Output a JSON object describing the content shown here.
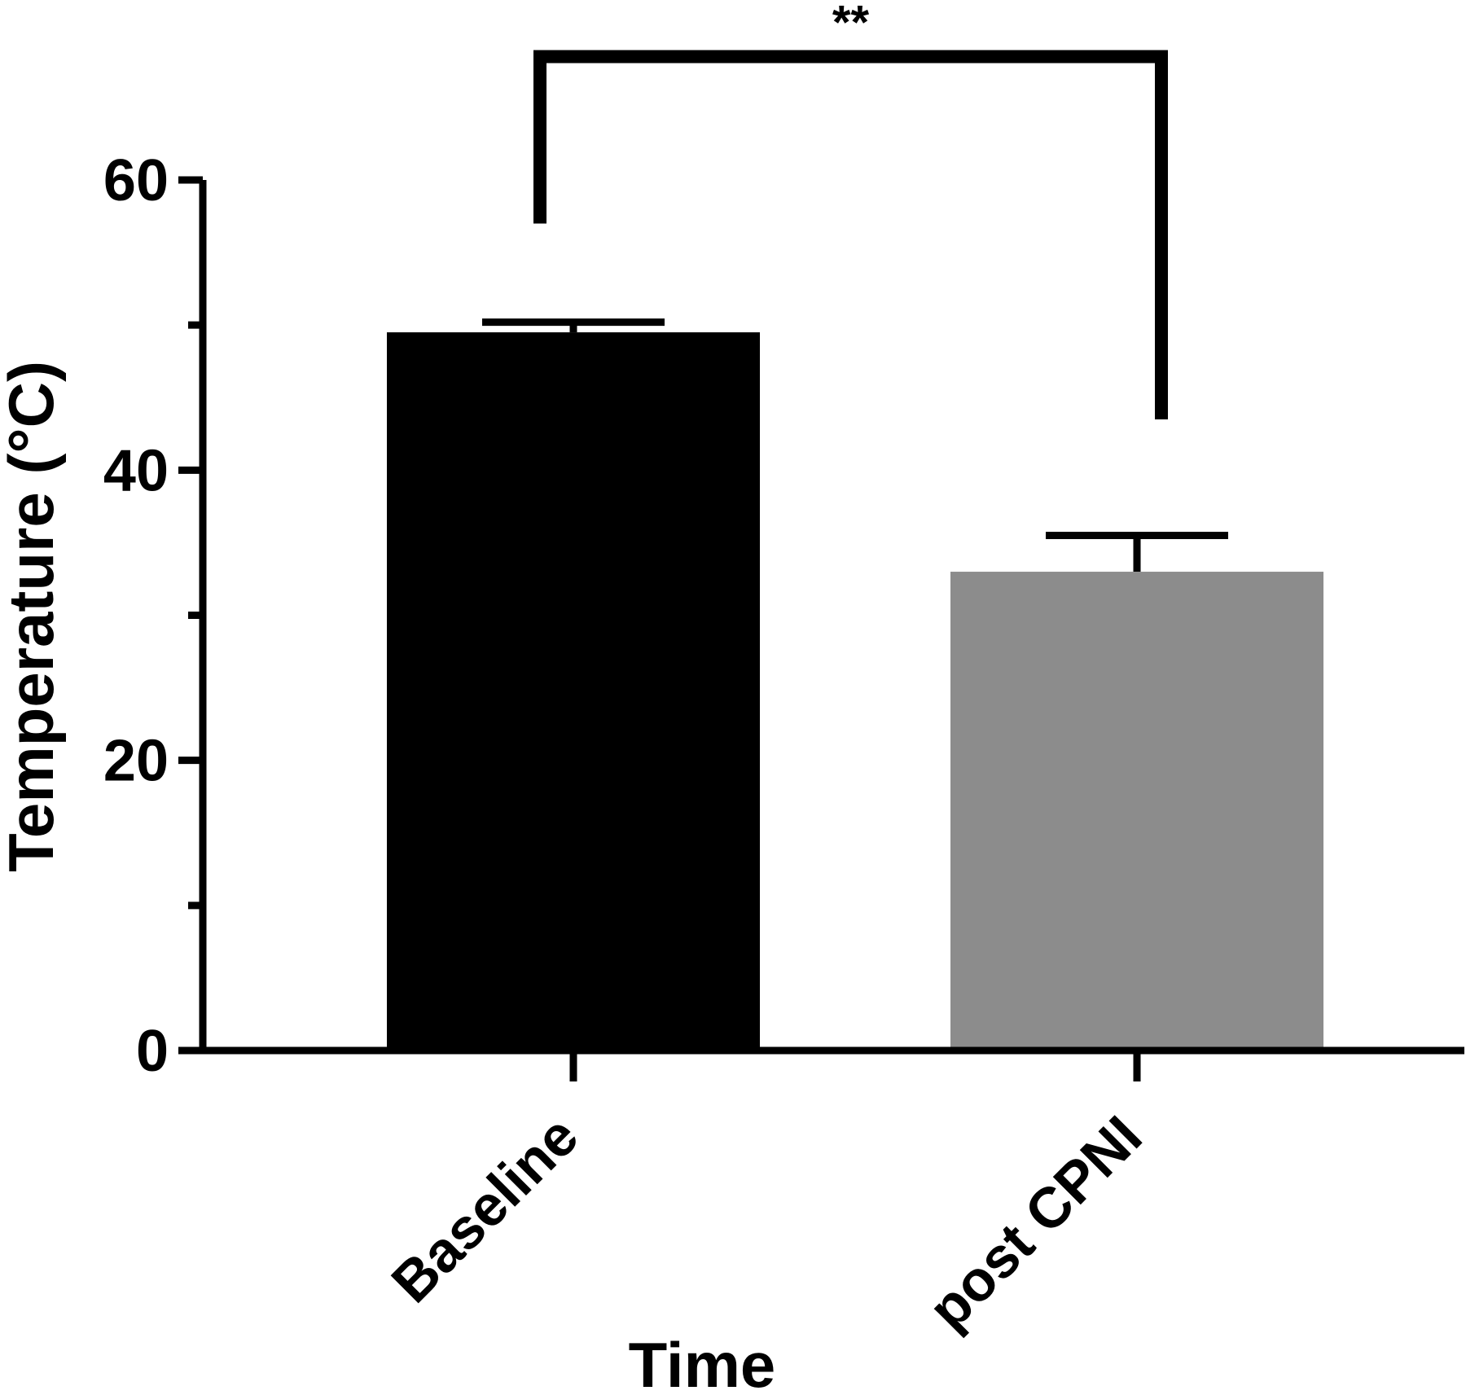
{
  "chart_data": {
    "type": "bar",
    "title": "",
    "xlabel": "Time",
    "ylabel": "Temperature (°C)",
    "categories": [
      "Baseline",
      "post CPNI"
    ],
    "values": [
      49.5,
      33.0
    ],
    "error_upper": [
      50.2,
      35.5
    ],
    "bar_colors": [
      "#000000",
      "#8c8c8c"
    ],
    "ylim": [
      0,
      60
    ],
    "yticks": [
      0,
      20,
      40,
      60
    ],
    "yticks_minor": [
      10,
      30,
      50
    ],
    "legend": "none",
    "grid": false,
    "significance": {
      "label": "**",
      "between": [
        "Baseline",
        "post CPNI"
      ],
      "bracket_top": 68.5,
      "left_end": 57.0,
      "right_end": 43.5
    }
  }
}
